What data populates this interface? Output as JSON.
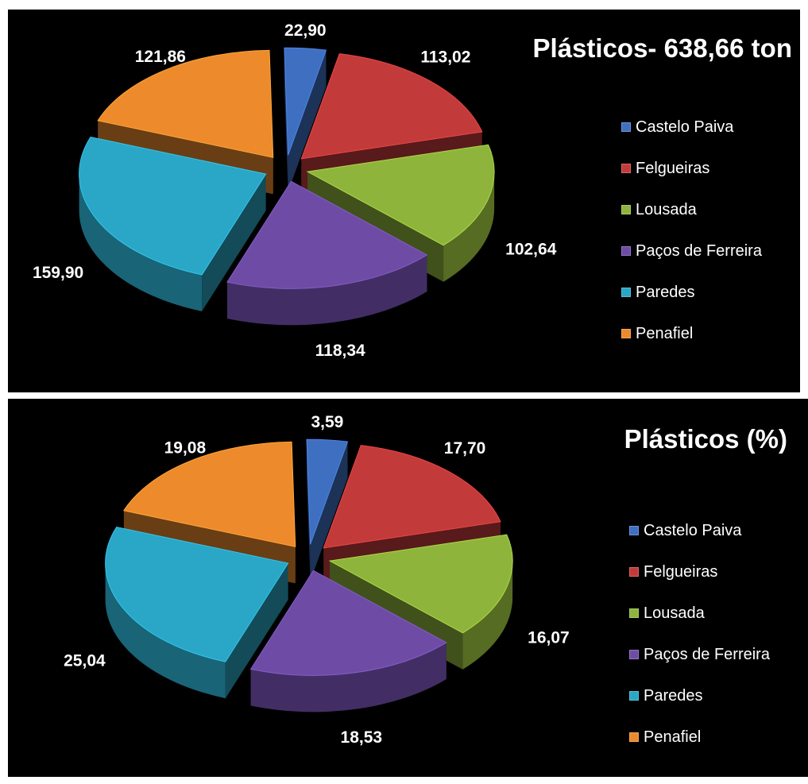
{
  "colors": {
    "background": "#000000",
    "Castelo Paiva": "#3f6fc0",
    "Felgueiras": "#c33a3a",
    "Lousada": "#8fb43b",
    "Paços de Ferreira": "#6e4ca6",
    "Paredes": "#2aa6c6",
    "Penafiel": "#ec8a2c"
  },
  "chart_data": [
    {
      "type": "pie",
      "title": "Plásticos- 638,66 ton",
      "legend_position": "right",
      "categories": [
        "Castelo Paiva",
        "Felgueiras",
        "Lousada",
        "Paços de Ferreira",
        "Paredes",
        "Penafiel"
      ],
      "values": [
        22.9,
        113.02,
        102.64,
        118.34,
        159.9,
        121.86
      ],
      "value_labels": [
        "22,90",
        "113,02",
        "102,64",
        "118,34",
        "159,90",
        "121,86"
      ]
    },
    {
      "type": "pie",
      "title": "Plásticos (%)",
      "legend_position": "right",
      "categories": [
        "Castelo Paiva",
        "Felgueiras",
        "Lousada",
        "Paços de Ferreira",
        "Paredes",
        "Penafiel"
      ],
      "values": [
        3.59,
        17.7,
        16.07,
        18.53,
        25.04,
        19.08
      ],
      "value_labels": [
        "3,59",
        "17,70",
        "16,07",
        "18,53",
        "25,04",
        "19,08"
      ]
    }
  ]
}
